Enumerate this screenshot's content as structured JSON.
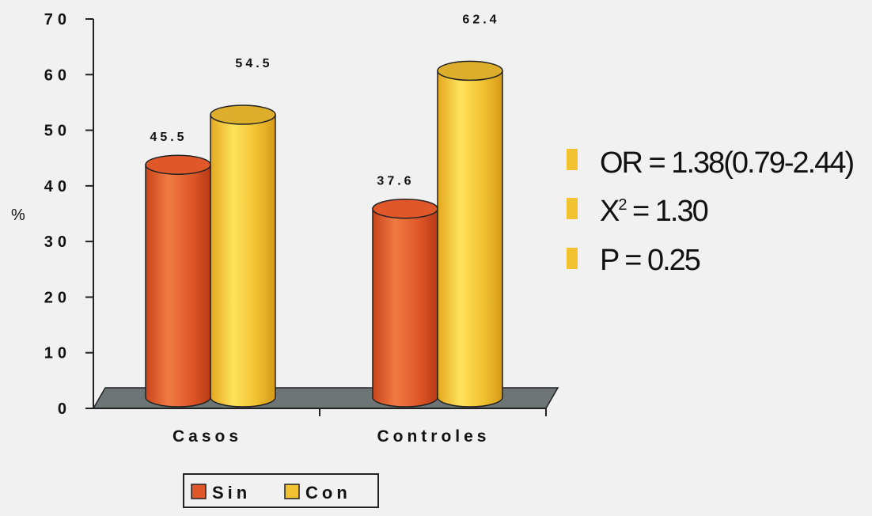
{
  "chart_data": {
    "type": "bar",
    "categories": [
      "Casos",
      "Controles"
    ],
    "series": [
      {
        "name": "Sin",
        "values": [
          45.5,
          37.6
        ]
      },
      {
        "name": "Con",
        "values": [
          54.5,
          62.4
        ]
      }
    ],
    "data_labels": [
      [
        "45.5",
        "37.6"
      ],
      [
        "54.5",
        "62.4"
      ]
    ],
    "ylabel": "%",
    "ylim": [
      0,
      70
    ],
    "yticks": [
      "0",
      "10",
      "20",
      "30",
      "40",
      "50",
      "60",
      "70"
    ],
    "style": "3d-cylinder",
    "legend_position": "bottom",
    "colors": {
      "Sin": "#e0582a",
      "Con": "#f1c232",
      "floor": "#6e7577",
      "stat_bullet": "#f1c232"
    }
  },
  "stats": [
    {
      "main": "OR = 1.38(0.79-2.44)",
      "sup": ""
    },
    {
      "main": "X",
      "sup": "2",
      "rest": " = 1.30"
    },
    {
      "main": "P = 0.25",
      "sup": ""
    }
  ]
}
